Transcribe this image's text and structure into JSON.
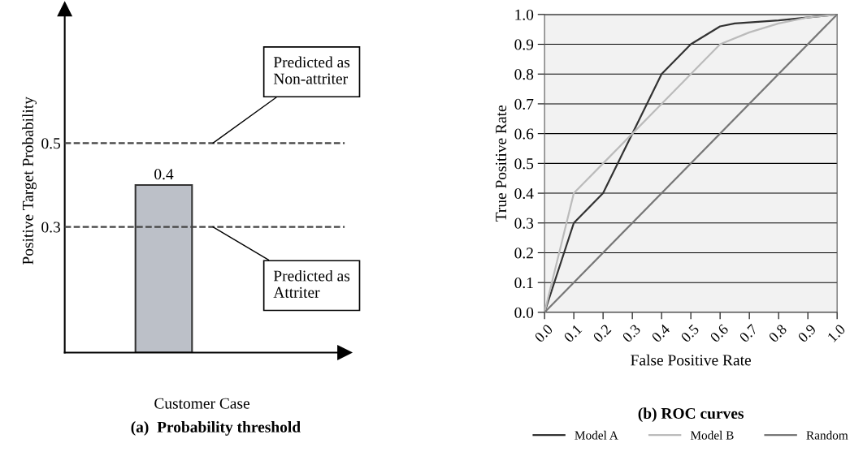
{
  "chart_data": [
    {
      "type": "bar",
      "title": "(a)  Probability threshold",
      "xlabel": "Customer Case",
      "ylabel": "Positive Target Probability",
      "categories": [
        null
      ],
      "values": [
        0.4
      ],
      "color": "#bcc0c8",
      "data_labels": true,
      "ylim": [
        0,
        0.82
      ],
      "yticks": [
        0.3,
        0.5
      ],
      "tick_labels": "y",
      "grid": false,
      "ref_lines": [
        {
          "axis": "y",
          "value": 0.5,
          "label": "Predicted as\nNon-attriter",
          "color": "#444444",
          "line_style": "dashed"
        },
        {
          "axis": "y",
          "value": 0.3,
          "label": "Predicted as\nAttriter",
          "color": "#444444",
          "line_style": "dashed"
        }
      ]
    },
    {
      "type": "line",
      "title": "(b) ROC curves",
      "xlabel": "False Positive Rate",
      "ylabel": "True Positive Rate",
      "xlim": [
        0,
        1
      ],
      "ylim": [
        0,
        1
      ],
      "xticks": [
        {
          "value": 0,
          "label": "0.0"
        },
        0.1,
        0.2,
        0.3,
        0.4,
        0.5,
        0.6,
        0.7,
        0.8,
        0.9,
        {
          "value": 1,
          "label": "1.0"
        }
      ],
      "yticks": [
        {
          "value": 0,
          "label": "0.0"
        },
        0.1,
        0.2,
        0.3,
        0.4,
        0.5,
        0.6,
        0.7,
        0.8,
        0.9,
        {
          "value": 1,
          "label": "1.0"
        }
      ],
      "grid": "y",
      "legend": "bottom",
      "marker": "none",
      "line_style": "solid",
      "series": [
        {
          "name": "Model A",
          "color": "#333333",
          "x": [
            0,
            0.1,
            0.2,
            0.3,
            0.35,
            0.4,
            0.5,
            0.6,
            0.65,
            0.8,
            1
          ],
          "values": [
            0,
            0.3,
            0.4,
            0.6,
            0.7,
            0.8,
            0.9,
            0.96,
            0.97,
            0.98,
            1
          ]
        },
        {
          "name": "Model B",
          "color": "#bbbbbb",
          "x": [
            0,
            0.1,
            0.2,
            0.3,
            0.4,
            0.5,
            0.6,
            0.7,
            0.8,
            0.9,
            1
          ],
          "values": [
            0,
            0.4,
            0.5,
            0.6,
            0.7,
            0.8,
            0.9,
            0.94,
            0.97,
            0.99,
            1
          ]
        },
        {
          "name": "Random",
          "color": "#777777",
          "x": [
            0,
            1
          ],
          "values": [
            0,
            1
          ]
        }
      ]
    }
  ]
}
